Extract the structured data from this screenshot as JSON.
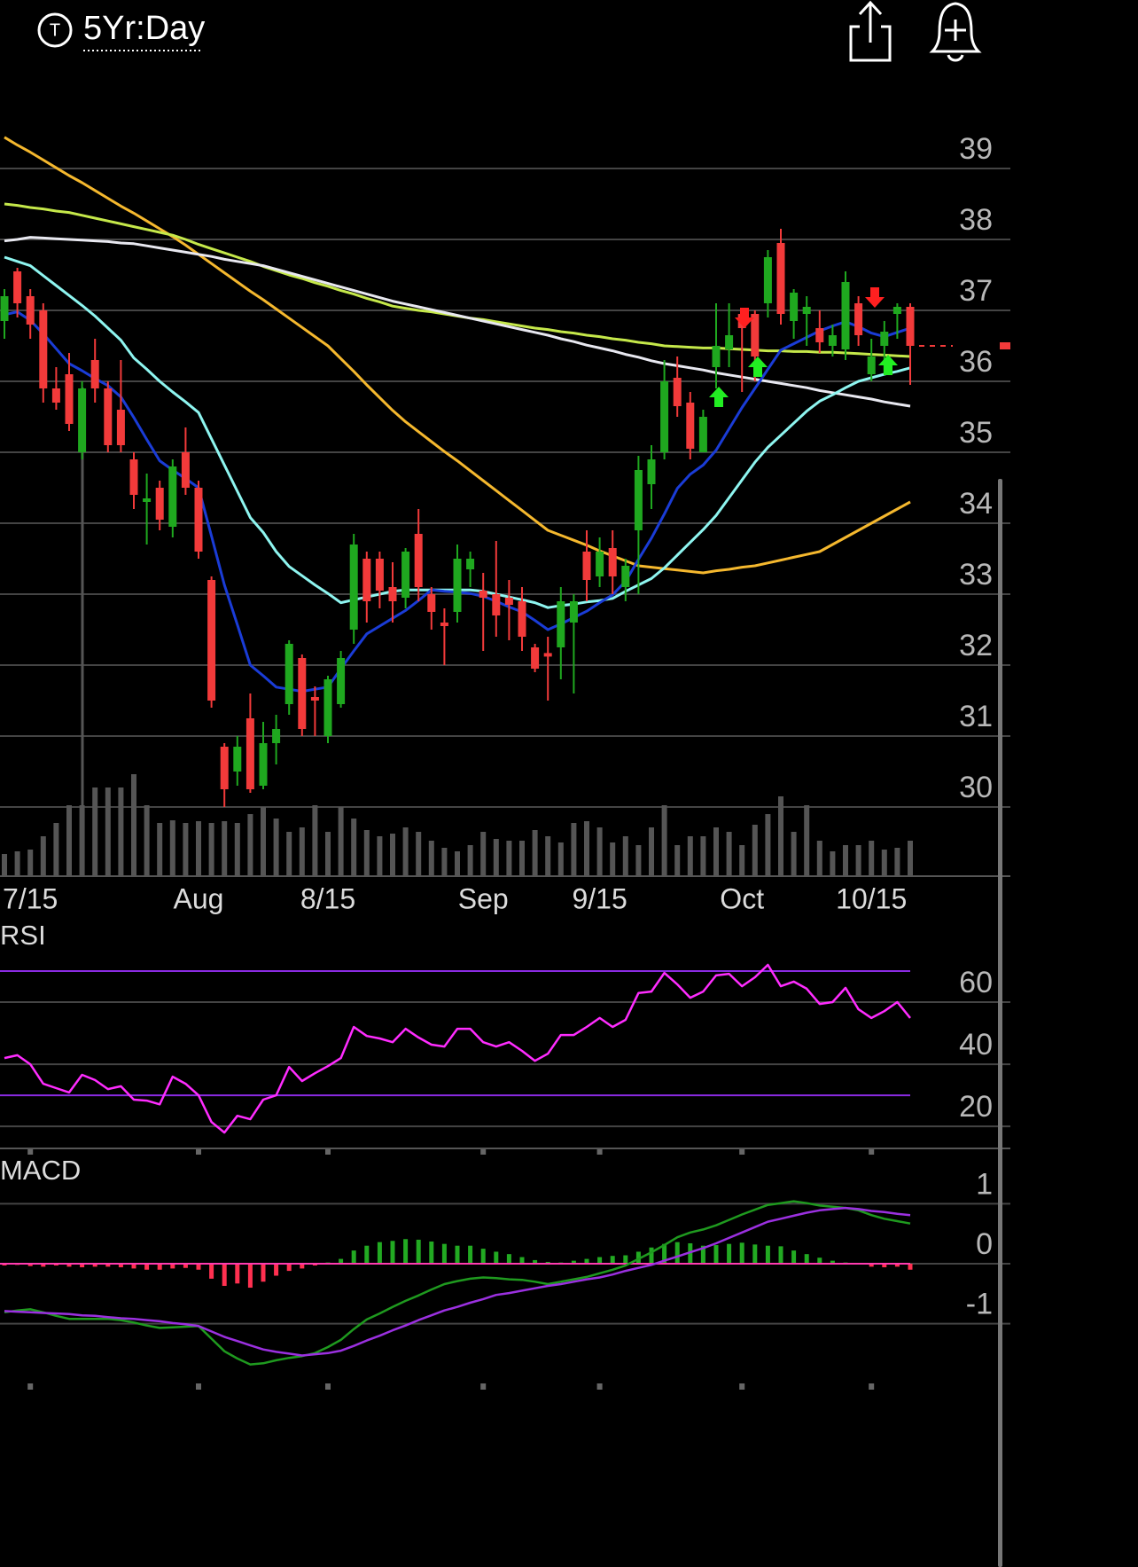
{
  "header": {
    "symbol_icon": "T",
    "timeframe": "5Yr:Day"
  },
  "chart_data": [
    {
      "type": "candlestick",
      "categories": [
        null,
        null,
        "7/15",
        null,
        null,
        null,
        null,
        null,
        null,
        null,
        null,
        null,
        null,
        null,
        null,
        "Aug",
        null,
        null,
        null,
        null,
        null,
        null,
        null,
        null,
        null,
        "8/15",
        null,
        null,
        null,
        null,
        null,
        null,
        null,
        null,
        null,
        null,
        null,
        "Sep",
        null,
        null,
        null,
        null,
        null,
        null,
        null,
        null,
        "9/15",
        null,
        null,
        null,
        null,
        null,
        null,
        null,
        null,
        null,
        null,
        "Oct",
        null,
        null,
        null,
        null,
        null,
        null,
        null,
        null,
        null,
        "10/15",
        null,
        null,
        null
      ],
      "open": [
        36.85,
        37.55,
        37.2,
        37.0,
        35.9,
        36.1,
        35.0,
        36.3,
        35.9,
        35.6,
        34.9,
        34.3,
        34.5,
        33.95,
        35.0,
        34.5,
        33.2,
        30.85,
        30.5,
        31.25,
        30.3,
        30.9,
        31.45,
        32.1,
        31.55,
        31.0,
        31.45,
        32.5,
        33.5,
        33.5,
        33.1,
        32.95,
        33.85,
        33.0,
        32.6,
        32.75,
        33.35,
        33.05,
        33.0,
        32.95,
        32.9,
        32.25,
        32.17,
        32.25,
        32.6,
        33.6,
        33.25,
        33.65,
        33.1,
        33.9,
        34.55,
        35.0,
        36.05,
        35.7,
        35.0,
        36.2,
        36.45,
        36.95,
        36.95,
        37.1,
        37.95,
        36.85,
        36.95,
        36.75,
        36.5,
        36.45,
        37.1,
        36.1,
        36.5,
        36.95,
        37.05
      ],
      "high": [
        37.3,
        37.6,
        37.3,
        37.1,
        36.2,
        36.4,
        36.0,
        36.6,
        36.0,
        36.3,
        35.0,
        34.7,
        34.6,
        34.9,
        35.35,
        34.6,
        33.25,
        30.9,
        31.0,
        31.6,
        31.2,
        31.3,
        32.35,
        32.15,
        31.7,
        31.85,
        32.2,
        33.85,
        33.6,
        33.6,
        33.45,
        33.65,
        34.2,
        33.1,
        32.8,
        33.7,
        33.6,
        33.3,
        33.75,
        33.2,
        33.1,
        32.3,
        32.4,
        33.1,
        33.0,
        33.9,
        33.8,
        33.9,
        33.5,
        34.95,
        35.1,
        36.3,
        36.35,
        35.85,
        35.6,
        37.1,
        37.1,
        37.0,
        37.0,
        37.85,
        38.15,
        37.3,
        37.2,
        37.0,
        36.8,
        37.55,
        37.2,
        36.6,
        36.85,
        37.1,
        37.1
      ],
      "low": [
        36.6,
        36.9,
        36.6,
        35.7,
        35.6,
        35.3,
        34.9,
        35.7,
        35.0,
        35.0,
        34.2,
        33.7,
        33.9,
        33.8,
        34.4,
        33.5,
        31.4,
        30.0,
        30.3,
        30.2,
        30.25,
        30.6,
        31.3,
        31.0,
        31.0,
        30.9,
        31.4,
        32.3,
        32.6,
        32.8,
        32.6,
        32.8,
        32.9,
        32.5,
        32.0,
        32.6,
        33.1,
        32.2,
        32.4,
        32.35,
        32.2,
        31.9,
        31.5,
        31.8,
        31.6,
        32.9,
        33.1,
        33.0,
        32.9,
        33.0,
        34.2,
        34.9,
        35.5,
        34.9,
        35.0,
        35.9,
        36.2,
        35.85,
        36.0,
        36.9,
        36.8,
        36.6,
        36.5,
        36.4,
        36.35,
        36.3,
        36.5,
        36.0,
        36.1,
        36.6,
        35.95
      ],
      "close": [
        37.2,
        37.1,
        36.8,
        35.9,
        35.7,
        35.4,
        35.9,
        35.9,
        35.1,
        35.1,
        34.4,
        34.35,
        34.05,
        34.8,
        34.5,
        33.6,
        31.5,
        30.25,
        30.85,
        30.25,
        30.9,
        31.1,
        32.3,
        31.1,
        31.5,
        31.8,
        32.1,
        33.7,
        32.9,
        33.05,
        32.9,
        33.6,
        33.1,
        32.75,
        32.55,
        33.5,
        33.5,
        32.95,
        32.7,
        32.85,
        32.4,
        31.95,
        32.12,
        32.9,
        32.9,
        33.2,
        33.6,
        33.25,
        33.4,
        34.75,
        34.9,
        36.0,
        35.65,
        35.05,
        35.5,
        36.5,
        36.65,
        36.75,
        36.35,
        37.75,
        36.95,
        37.25,
        37.05,
        36.55,
        36.65,
        37.4,
        36.65,
        36.35,
        36.7,
        37.05,
        36.5
      ],
      "up_color": "#1fa81f",
      "down_color": "#f23a3a",
      "lines": [
        {
          "color": "#f5b82e",
          "values": [
            39.44,
            39.33,
            39.23,
            39.12,
            39.01,
            38.9,
            38.8,
            38.69,
            38.58,
            38.47,
            38.37,
            38.26,
            38.15,
            38.04,
            37.92,
            37.79,
            37.66,
            37.53,
            37.4,
            37.27,
            37.15,
            37.02,
            36.89,
            36.76,
            36.63,
            36.5,
            36.32,
            36.14,
            35.95,
            35.77,
            35.59,
            35.43,
            35.29,
            35.15,
            35.01,
            34.88,
            34.74,
            34.6,
            34.46,
            34.32,
            34.18,
            34.04,
            33.9,
            33.83,
            33.76,
            33.69,
            33.61,
            33.54,
            33.47,
            33.4,
            33.38,
            33.36,
            33.34,
            33.32,
            33.3,
            33.33,
            33.35,
            33.38,
            33.4,
            33.44,
            33.48,
            33.52,
            33.56,
            33.6,
            33.7,
            33.8,
            33.9,
            34.0,
            34.1,
            34.2,
            34.3
          ]
        },
        {
          "color": "#c5e84a",
          "values": [
            38.5,
            38.48,
            38.45,
            38.43,
            38.4,
            38.38,
            38.34,
            38.3,
            38.26,
            38.22,
            38.18,
            38.14,
            38.1,
            38.06,
            38.0,
            37.93,
            37.87,
            37.81,
            37.75,
            37.69,
            37.62,
            37.56,
            37.5,
            37.45,
            37.39,
            37.34,
            37.28,
            37.23,
            37.17,
            37.12,
            37.06,
            37.03,
            37.0,
            36.98,
            36.95,
            36.92,
            36.89,
            36.87,
            36.84,
            36.81,
            36.78,
            36.75,
            36.73,
            36.7,
            36.68,
            36.65,
            36.63,
            36.6,
            36.58,
            36.55,
            36.53,
            36.5,
            36.49,
            36.48,
            36.47,
            36.47,
            36.46,
            36.45,
            36.44,
            36.43,
            36.43,
            36.42,
            36.42,
            36.41,
            36.41,
            36.4,
            36.39,
            36.38,
            36.37,
            36.36,
            36.35
          ]
        },
        {
          "color": "#e8e8f0",
          "values": [
            37.98,
            38.0,
            38.03,
            38.02,
            38.01,
            38.0,
            37.99,
            37.98,
            37.97,
            37.95,
            37.94,
            37.91,
            37.88,
            37.85,
            37.82,
            37.79,
            37.76,
            37.72,
            37.69,
            37.66,
            37.63,
            37.58,
            37.53,
            37.48,
            37.43,
            37.38,
            37.33,
            37.28,
            37.23,
            37.18,
            37.13,
            37.09,
            37.05,
            37.01,
            36.97,
            36.93,
            36.89,
            36.85,
            36.81,
            36.77,
            36.73,
            36.69,
            36.65,
            36.6,
            36.56,
            36.51,
            36.47,
            36.43,
            36.38,
            36.34,
            36.29,
            36.25,
            36.22,
            36.19,
            36.16,
            36.12,
            36.09,
            36.06,
            36.03,
            36.0,
            35.97,
            35.94,
            35.91,
            35.87,
            35.84,
            35.81,
            35.78,
            35.75,
            35.71,
            35.68,
            35.65
          ]
        },
        {
          "color": "#8ef5f0",
          "values": [
            37.75,
            37.69,
            37.63,
            37.49,
            37.35,
            37.21,
            37.07,
            36.92,
            36.75,
            36.58,
            36.33,
            36.17,
            36.0,
            35.85,
            35.71,
            35.56,
            35.19,
            34.82,
            34.45,
            34.08,
            33.87,
            33.6,
            33.39,
            33.26,
            33.13,
            33.01,
            32.88,
            32.92,
            32.96,
            33.0,
            33.04,
            33.06,
            33.06,
            33.06,
            33.06,
            33.06,
            33.06,
            33.04,
            33.0,
            32.96,
            32.92,
            32.88,
            32.81,
            32.84,
            32.86,
            32.89,
            32.91,
            32.94,
            33.04,
            33.13,
            33.22,
            33.37,
            33.55,
            33.73,
            33.91,
            34.11,
            34.36,
            34.61,
            34.86,
            35.07,
            35.24,
            35.41,
            35.58,
            35.72,
            35.81,
            35.91,
            36.0,
            36.05,
            36.1,
            36.14,
            36.19
          ]
        },
        {
          "color": "#1a3cd6",
          "values": [
            36.94,
            36.98,
            36.86,
            36.67,
            36.46,
            36.25,
            36.15,
            36.04,
            35.94,
            35.78,
            35.49,
            35.18,
            34.88,
            34.75,
            34.63,
            34.5,
            33.82,
            33.13,
            32.57,
            32.0,
            31.85,
            31.69,
            31.66,
            31.63,
            31.66,
            31.69,
            31.95,
            32.2,
            32.44,
            32.55,
            32.66,
            32.77,
            32.91,
            33.06,
            33.04,
            33.03,
            33.01,
            32.97,
            32.9,
            32.82,
            32.75,
            32.63,
            32.5,
            32.58,
            32.67,
            32.76,
            32.88,
            32.99,
            33.18,
            33.49,
            33.79,
            34.13,
            34.49,
            34.69,
            34.82,
            35.03,
            35.33,
            35.63,
            35.9,
            36.17,
            36.44,
            36.53,
            36.62,
            36.71,
            36.78,
            36.84,
            36.77,
            36.68,
            36.63,
            36.69,
            36.75
          ]
        }
      ],
      "volume": {
        "color": "#555555",
        "values": [
          25,
          28,
          30,
          45,
          60,
          80,
          80,
          100,
          100,
          100,
          115,
          80,
          60,
          63,
          60,
          62,
          60,
          62,
          60,
          70,
          78,
          65,
          50,
          55,
          80,
          50,
          78,
          65,
          52,
          45,
          48,
          55,
          50,
          40,
          32,
          28,
          35,
          50,
          42,
          40,
          40,
          52,
          45,
          38,
          60,
          62,
          55,
          38,
          45,
          35,
          55,
          80,
          35,
          45,
          45,
          55,
          50,
          35,
          58,
          70,
          90,
          50,
          80,
          40,
          28,
          35,
          35,
          40,
          30,
          32,
          40
        ]
      },
      "ylim": [
        29.025,
        40.125
      ],
      "yticks": [
        30,
        31,
        32,
        33,
        34,
        35,
        36,
        37,
        38,
        39
      ],
      "grid": true
    },
    {
      "type": "line",
      "title": "RSI",
      "color": "#ff2cff",
      "values": [
        42,
        42.9,
        40,
        33.7,
        32.3,
        30.9,
        36.6,
        34.9,
        32,
        32.9,
        28.6,
        28.3,
        27.1,
        36,
        33.7,
        30,
        21.4,
        18,
        23.4,
        22.3,
        28.6,
        30,
        39.1,
        34.6,
        37.1,
        39.4,
        42,
        52,
        49.1,
        48.3,
        47.1,
        51.4,
        48.6,
        46.3,
        45.7,
        51.4,
        51.4,
        47.1,
        45.7,
        47.1,
        44.3,
        41.1,
        43.4,
        49.4,
        49.4,
        52,
        54.9,
        52,
        54.3,
        62.9,
        63.4,
        69.4,
        65.7,
        61.4,
        63.4,
        68.6,
        69.1,
        65.1,
        68,
        72,
        65.1,
        66.6,
        64.3,
        59.4,
        60,
        64.6,
        57.7,
        54.9,
        57.1,
        60,
        54.9
      ],
      "levels": [
        30,
        70
      ],
      "level_color": "#8a2be2",
      "ylim": [
        12.9,
        75.7
      ],
      "yticks": [
        20,
        40,
        60
      ],
      "grid": true
    },
    {
      "type": "macd",
      "title": "MACD",
      "series": [
        {
          "color": "#1f9a1f",
          "values": [
            -0.81,
            -0.78,
            -0.76,
            -0.81,
            -0.87,
            -0.92,
            -0.92,
            -0.92,
            -0.92,
            -0.94,
            -0.98,
            -1.03,
            -1.07,
            -1.06,
            -1.05,
            -1.04,
            -1.25,
            -1.46,
            -1.58,
            -1.68,
            -1.66,
            -1.61,
            -1.57,
            -1.54,
            -1.49,
            -1.39,
            -1.27,
            -1.09,
            -0.93,
            -0.83,
            -0.72,
            -0.62,
            -0.53,
            -0.43,
            -0.34,
            -0.29,
            -0.25,
            -0.23,
            -0.24,
            -0.26,
            -0.27,
            -0.3,
            -0.34,
            -0.3,
            -0.26,
            -0.22,
            -0.16,
            -0.1,
            -0.03,
            0.08,
            0.19,
            0.31,
            0.44,
            0.52,
            0.57,
            0.64,
            0.73,
            0.82,
            0.9,
            0.98,
            1.01,
            1.04,
            1.01,
            0.97,
            0.95,
            0.93,
            0.89,
            0.81,
            0.75,
            0.71,
            0.67
          ]
        },
        {
          "color": "#9b30e0",
          "values": [
            -0.79,
            -0.8,
            -0.81,
            -0.82,
            -0.83,
            -0.84,
            -0.86,
            -0.87,
            -0.89,
            -0.91,
            -0.92,
            -0.94,
            -0.96,
            -0.99,
            -1.01,
            -1.04,
            -1.13,
            -1.22,
            -1.29,
            -1.36,
            -1.43,
            -1.47,
            -1.5,
            -1.53,
            -1.51,
            -1.49,
            -1.45,
            -1.37,
            -1.28,
            -1.2,
            -1.11,
            -1.03,
            -0.94,
            -0.86,
            -0.78,
            -0.72,
            -0.65,
            -0.59,
            -0.52,
            -0.49,
            -0.45,
            -0.41,
            -0.37,
            -0.34,
            -0.3,
            -0.26,
            -0.23,
            -0.18,
            -0.12,
            -0.07,
            -0.02,
            0.05,
            0.12,
            0.19,
            0.26,
            0.34,
            0.43,
            0.52,
            0.61,
            0.7,
            0.75,
            0.8,
            0.85,
            0.89,
            0.91,
            0.93,
            0.91,
            0.88,
            0.86,
            0.83,
            0.81
          ]
        }
      ],
      "histogram": {
        "up_color": "#22aa22",
        "down_color": "#ff3050",
        "values": [
          -0.03,
          -0.02,
          -0.04,
          -0.05,
          -0.03,
          -0.05,
          -0.06,
          -0.05,
          -0.05,
          -0.06,
          -0.08,
          -0.1,
          -0.1,
          -0.08,
          -0.07,
          -0.1,
          -0.25,
          -0.37,
          -0.33,
          -0.4,
          -0.3,
          -0.2,
          -0.12,
          -0.08,
          -0.03,
          0.02,
          0.08,
          0.22,
          0.3,
          0.36,
          0.38,
          0.41,
          0.4,
          0.37,
          0.33,
          0.3,
          0.3,
          0.25,
          0.2,
          0.16,
          0.11,
          0.06,
          0.03,
          0.02,
          0.05,
          0.08,
          0.11,
          0.13,
          0.14,
          0.2,
          0.27,
          0.33,
          0.36,
          0.34,
          0.3,
          0.31,
          0.33,
          0.35,
          0.32,
          0.3,
          0.29,
          0.22,
          0.16,
          0.1,
          0.05,
          0.02,
          0.01,
          -0.05,
          -0.06,
          -0.05,
          -0.1
        ]
      },
      "zero_line_color": "#ff3bb0",
      "ylim": [
        -2.07,
        1.7
      ],
      "yticks": [
        -1,
        0,
        1
      ],
      "grid": true
    }
  ]
}
